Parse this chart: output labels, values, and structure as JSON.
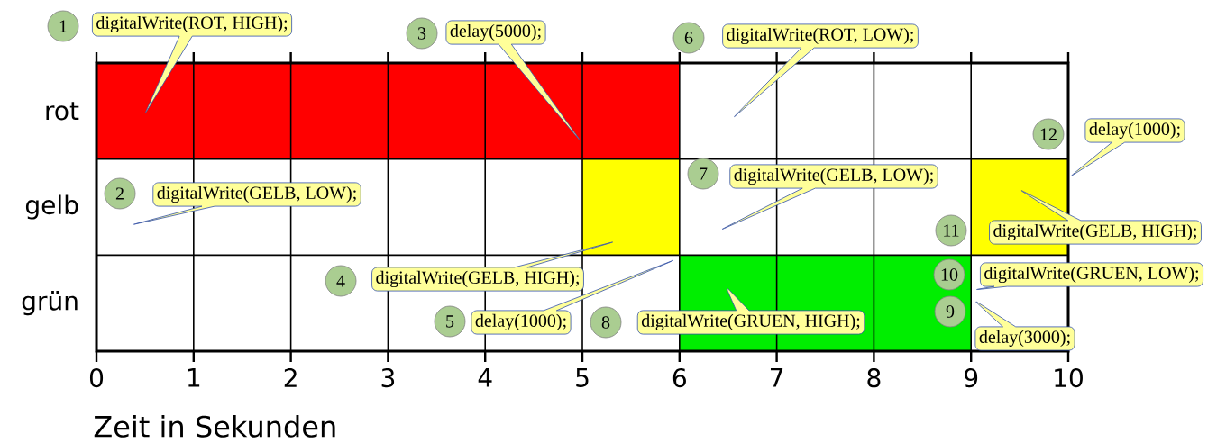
{
  "chart_data": {
    "type": "bar",
    "orientation": "horizontal",
    "categories": [
      "rot",
      "gelb",
      "grün"
    ],
    "series": [
      {
        "color": "#ff0000",
        "values": [
          6,
          null,
          null
        ],
        "base": [
          0,
          null,
          null
        ]
      },
      {
        "color": "#ffff00",
        "values": [
          null,
          1,
          null
        ],
        "base": [
          null,
          5,
          null
        ]
      },
      {
        "color": "#ffff00",
        "values": [
          null,
          1,
          null
        ],
        "base": [
          null,
          9,
          null
        ]
      },
      {
        "color": "#00ee00",
        "values": [
          null,
          null,
          3
        ],
        "base": [
          null,
          null,
          6
        ]
      }
    ],
    "xlim": [
      0,
      10
    ],
    "xticks": [
      0,
      1,
      2,
      3,
      4,
      5,
      6,
      7,
      8,
      9,
      10
    ],
    "xlabel": "Zeit in Sekunden",
    "grid": true,
    "annotations": [
      "digitalWrite(ROT, HIGH);",
      "digitalWrite(GELB, LOW);",
      "delay(5000);",
      "digitalWrite(GELB, HIGH);",
      "delay(1000);",
      "digitalWrite(ROT, LOW);",
      "digitalWrite(GELB, LOW);",
      "digitalWrite(GRUEN, HIGH);",
      "delay(3000);",
      "digitalWrite(GRUEN, LOW);",
      "digitalWrite(GELB, HIGH);",
      "delay(1000);",
      "1",
      "2",
      "3",
      "4",
      "5",
      "6",
      "7",
      "8",
      "9",
      "10",
      "11",
      "12"
    ]
  }
}
